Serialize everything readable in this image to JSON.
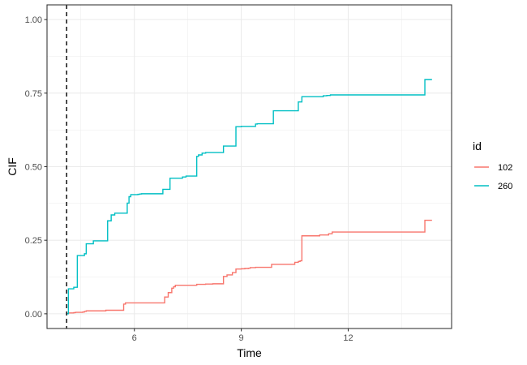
{
  "chart_data": {
    "type": "line",
    "step": true,
    "xlabel": "Time",
    "ylabel": "CIF",
    "xlim": [
      3.55,
      14.9
    ],
    "ylim": [
      -0.05,
      1.05
    ],
    "x_ticks": [
      6,
      9,
      12
    ],
    "x_tick_labels": [
      "6",
      "9",
      "12"
    ],
    "x_minor_ticks": [
      4.5,
      7.5,
      10.5,
      13.5
    ],
    "y_ticks": [
      0,
      0.25,
      0.5,
      0.75,
      1.0
    ],
    "y_tick_labels": [
      "0.00",
      "0.25",
      "0.50",
      "0.75",
      "1.00"
    ],
    "y_minor_ticks": [
      0.125,
      0.375,
      0.625,
      0.875
    ],
    "vline": {
      "x": 4.1,
      "style": "dashed",
      "color": "#000000"
    },
    "grid": true,
    "legend": {
      "title": "id",
      "position": "right"
    },
    "series": [
      {
        "name": "102",
        "color": "#F8766D",
        "x": [
          4.1,
          4.15,
          4.3,
          4.35,
          4.55,
          4.6,
          4.65,
          5.1,
          5.2,
          5.55,
          5.7,
          5.75,
          6.6,
          6.85,
          6.95,
          7.05,
          7.1,
          7.15,
          7.6,
          7.75,
          7.9,
          8.0,
          8.15,
          8.2,
          8.25,
          8.5,
          8.6,
          8.75,
          8.85,
          8.9,
          9.0,
          9.1,
          9.2,
          9.25,
          9.4,
          9.85,
          10.0,
          10.5,
          10.6,
          10.65,
          10.7,
          10.75,
          11.2,
          11.3,
          11.45,
          11.55,
          13.95,
          14.15,
          14.35
        ],
        "y": [
          0.0,
          0.003,
          0.004,
          0.005,
          0.006,
          0.008,
          0.01,
          0.01,
          0.012,
          0.012,
          0.033,
          0.037,
          0.037,
          0.057,
          0.072,
          0.087,
          0.092,
          0.097,
          0.097,
          0.1,
          0.1,
          0.101,
          0.101,
          0.102,
          0.102,
          0.127,
          0.132,
          0.14,
          0.152,
          0.152,
          0.153,
          0.154,
          0.155,
          0.157,
          0.158,
          0.168,
          0.168,
          0.175,
          0.178,
          0.18,
          0.265,
          0.265,
          0.268,
          0.268,
          0.272,
          0.278,
          0.278,
          0.318,
          0.318
        ]
      },
      {
        "name": "260",
        "color": "#00BFC4",
        "x": [
          4.1,
          4.15,
          4.3,
          4.4,
          4.6,
          4.65,
          4.85,
          5.0,
          5.25,
          5.35,
          5.45,
          5.8,
          5.85,
          5.9,
          6.0,
          6.1,
          6.15,
          6.2,
          6.6,
          6.8,
          7.0,
          7.25,
          7.35,
          7.45,
          7.65,
          7.75,
          7.8,
          7.9,
          8.0,
          8.15,
          8.45,
          8.5,
          8.75,
          8.85,
          8.95,
          9.0,
          9.4,
          9.45,
          9.9,
          10.0,
          10.45,
          10.6,
          10.7,
          10.75,
          11.3,
          11.4,
          11.5,
          13.95,
          14.15,
          14.35
        ],
        "y": [
          0.0,
          0.085,
          0.09,
          0.198,
          0.204,
          0.238,
          0.248,
          0.248,
          0.316,
          0.336,
          0.342,
          0.376,
          0.398,
          0.405,
          0.405,
          0.406,
          0.407,
          0.408,
          0.408,
          0.423,
          0.461,
          0.461,
          0.465,
          0.468,
          0.468,
          0.535,
          0.54,
          0.546,
          0.548,
          0.548,
          0.548,
          0.57,
          0.57,
          0.636,
          0.636,
          0.637,
          0.645,
          0.646,
          0.69,
          0.69,
          0.69,
          0.72,
          0.738,
          0.738,
          0.741,
          0.742,
          0.744,
          0.744,
          0.796,
          0.796
        ]
      }
    ]
  }
}
